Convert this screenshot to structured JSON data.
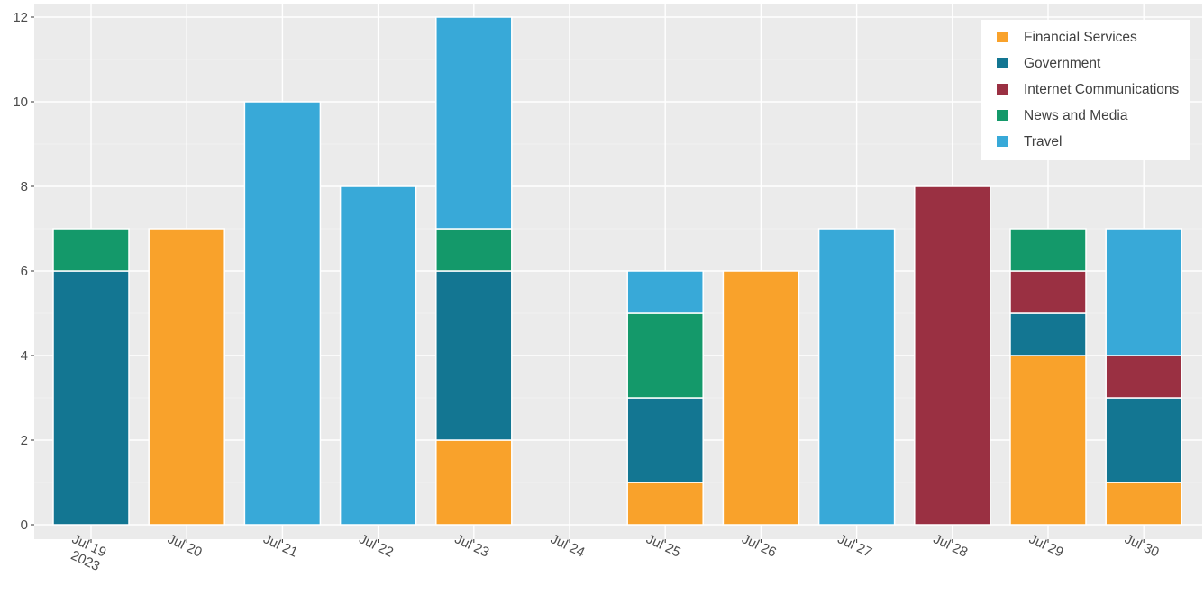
{
  "chart_data": {
    "type": "bar",
    "stacked": true,
    "title": "",
    "xlabel": "",
    "ylabel": "",
    "ylim": [
      0,
      12
    ],
    "yticks": [
      0,
      2,
      4,
      6,
      8,
      10,
      12
    ],
    "grid": true,
    "legend_position": "top-right",
    "categories": [
      [
        "Jul 19",
        "2023"
      ],
      [
        "Jul 20"
      ],
      [
        "Jul 21"
      ],
      [
        "Jul 22"
      ],
      [
        "Jul 23"
      ],
      [
        "Jul 24"
      ],
      [
        "Jul 25"
      ],
      [
        "Jul 26"
      ],
      [
        "Jul 27"
      ],
      [
        "Jul 28"
      ],
      [
        "Jul 29"
      ],
      [
        "Jul 30"
      ]
    ],
    "series": [
      {
        "name": "Financial Services",
        "color": "#F9A22B",
        "values": [
          0,
          7,
          0,
          0,
          2,
          0,
          1,
          6,
          0,
          0,
          4,
          1
        ]
      },
      {
        "name": "Government",
        "color": "#137692",
        "values": [
          6,
          0,
          0,
          0,
          4,
          0,
          2,
          0,
          0,
          0,
          1,
          2
        ]
      },
      {
        "name": "Internet Communications",
        "color": "#9A3042",
        "values": [
          0,
          0,
          0,
          0,
          0,
          0,
          0,
          0,
          0,
          8,
          1,
          1
        ]
      },
      {
        "name": "News and Media",
        "color": "#14996A",
        "values": [
          1,
          0,
          0,
          0,
          1,
          0,
          2,
          0,
          0,
          0,
          1,
          0
        ]
      },
      {
        "name": "Travel",
        "color": "#38A9D8",
        "values": [
          0,
          0,
          10,
          8,
          5,
          0,
          1,
          0,
          7,
          0,
          0,
          3
        ]
      }
    ],
    "colors": {
      "panel_background": "#EBEBEB",
      "grid": "#FFFFFF",
      "text": "#4D4D4D"
    }
  }
}
